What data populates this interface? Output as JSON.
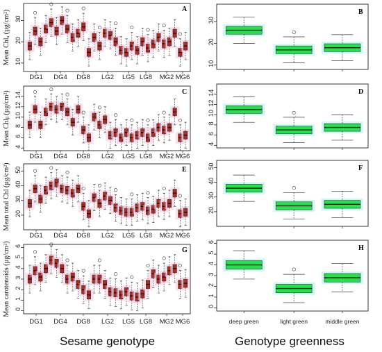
{
  "figure": {
    "xlabel_left": "Sesame genotype",
    "xlabel_right": "Genotype greenness"
  },
  "chart_data": [
    {
      "panel": "A",
      "type": "boxplot",
      "ylabel": "Mean Chlₐ (µg/cm²)",
      "ylim": [
        6,
        38
      ],
      "yticks": [
        10,
        20,
        30
      ],
      "xtick_labels": [
        "DG1",
        "DG4",
        "DG8",
        "LG2",
        "LG5",
        "LG8",
        "MG2",
        "MG6"
      ],
      "series": [
        {
          "name": "genotypes",
          "values": [
            18,
            25,
            20,
            26,
            29,
            25,
            30,
            26,
            22,
            24,
            27,
            15,
            22,
            18,
            24,
            23,
            20,
            16,
            15,
            18,
            16,
            20,
            17,
            19,
            22,
            19,
            20,
            24,
            15,
            18
          ]
        }
      ]
    },
    {
      "panel": "B",
      "type": "boxplot",
      "ylim": [
        8,
        38
      ],
      "yticks": [
        10,
        20,
        30
      ],
      "categories": [
        "deep green",
        "light green",
        "middle green"
      ],
      "series": [
        {
          "name": "greenness",
          "values": [
            26,
            17,
            18
          ]
        }
      ]
    },
    {
      "panel": "C",
      "type": "boxplot",
      "ylabel": "Mean Chlᵦ (µg/cm²)",
      "ylim": [
        3.5,
        16
      ],
      "yticks": [
        4,
        6,
        8,
        10,
        12,
        14
      ],
      "xtick_labels": [
        "DG1",
        "DG4",
        "DG8",
        "LG2",
        "LG5",
        "LG8",
        "MG2",
        "MG6"
      ],
      "series": [
        {
          "name": "genotypes",
          "values": [
            8.5,
            11.5,
            8.5,
            11,
            12,
            11.5,
            12,
            11,
            9,
            11.5,
            7.5,
            6,
            10,
            8.5,
            9.5,
            6.5,
            7,
            6,
            7,
            6,
            6.5,
            7,
            6,
            7,
            8,
            7.5,
            8,
            11,
            6,
            6.5
          ]
        }
      ]
    },
    {
      "panel": "D",
      "type": "boxplot",
      "ylim": [
        3.5,
        16
      ],
      "yticks": [
        4,
        6,
        8,
        10,
        12,
        14
      ],
      "categories": [
        "deep green",
        "light green",
        "middle green"
      ],
      "series": [
        {
          "name": "greenness",
          "values": [
            11,
            7,
            7.5
          ]
        }
      ]
    },
    {
      "panel": "E",
      "type": "boxplot",
      "ylabel": "Mean total Chl (µg/cm²)",
      "ylim": [
        10,
        55
      ],
      "yticks": [
        20,
        30,
        40,
        50
      ],
      "xtick_labels": [
        "DG1",
        "DG4",
        "DG8",
        "LG2",
        "LG5",
        "LG8",
        "MG2",
        "MG6"
      ],
      "series": [
        {
          "name": "genotypes",
          "values": [
            28,
            38,
            31,
            37,
            40,
            42,
            38,
            37,
            35,
            38,
            26,
            21,
            32,
            28,
            33,
            30,
            25,
            23,
            22,
            22,
            25,
            26,
            23,
            24,
            28,
            26,
            28,
            35,
            21,
            22
          ]
        }
      ]
    },
    {
      "panel": "F",
      "type": "boxplot",
      "ylim": [
        10,
        55
      ],
      "yticks": [
        20,
        30,
        40,
        50
      ],
      "categories": [
        "deep green",
        "light green",
        "middle green"
      ],
      "series": [
        {
          "name": "greenness",
          "values": [
            36,
            24,
            25
          ]
        }
      ]
    },
    {
      "panel": "G",
      "type": "boxplot",
      "ylabel": "Mean carotenoids (µg/cm²)",
      "ylim": [
        -0.3,
        6.3
      ],
      "yticks": [
        0,
        1,
        2,
        3,
        4,
        5,
        6
      ],
      "xtick_labels": [
        "DG1",
        "DG4",
        "DG8",
        "LG2",
        "LG5",
        "LG8",
        "MG2",
        "MG6"
      ],
      "series": [
        {
          "name": "genotypes",
          "values": [
            3.0,
            3.8,
            3.2,
            4.0,
            4.8,
            4.5,
            4.0,
            3.0,
            3.2,
            2.5,
            2.0,
            1.5,
            3.0,
            3.0,
            2.5,
            1.8,
            1.7,
            1.5,
            1.8,
            1.4,
            1.3,
            1.6,
            2.5,
            3.5,
            3.0,
            3.2,
            3.8,
            4.0,
            2.5,
            2.6
          ]
        }
      ]
    },
    {
      "panel": "H",
      "type": "boxplot",
      "ylim": [
        -0.3,
        6.3
      ],
      "yticks": [
        0,
        1,
        2,
        3,
        4,
        5,
        6
      ],
      "categories": [
        "deep green",
        "light green",
        "middle green"
      ],
      "series": [
        {
          "name": "greenness",
          "values": [
            4,
            1.8,
            2.8
          ]
        }
      ]
    }
  ]
}
